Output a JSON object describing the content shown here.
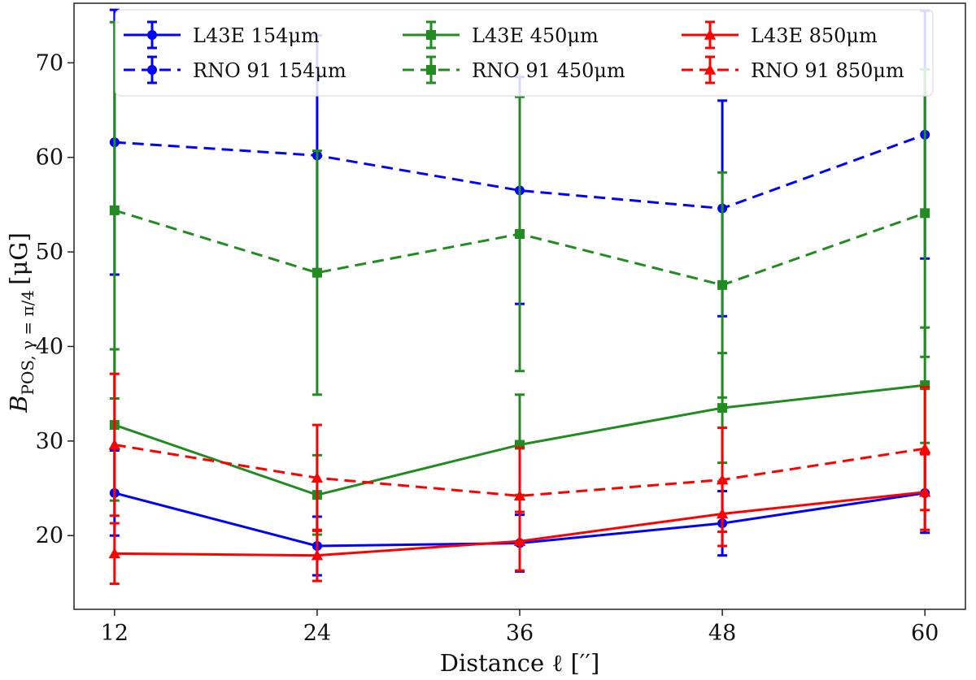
{
  "chart_data": {
    "type": "line",
    "xlabel": "Distance ℓ [′′]",
    "ylabel": {
      "main": "B",
      "sub": "POS, γ = π/4",
      "unit": "[μG]"
    },
    "x": [
      12,
      24,
      36,
      48,
      60
    ],
    "xlim": [
      9.6,
      62.4
    ],
    "ylim": [
      12.2,
      76.3
    ],
    "yticks": [
      20,
      30,
      40,
      50,
      60,
      70
    ],
    "xticks": [
      12,
      24,
      36,
      48,
      60
    ],
    "grid": false,
    "legend_placement": "top",
    "series": [
      {
        "name": "L43E 154μm",
        "color": "#0000ff",
        "dash": false,
        "marker": "circle",
        "values": [
          24.5,
          18.9,
          19.2,
          21.3,
          24.5
        ],
        "err": [
          4.5,
          3.1,
          3.0,
          3.4,
          4.2
        ]
      },
      {
        "name": "RNO 91 154μm",
        "color": "#0000ff",
        "dash": true,
        "marker": "circle",
        "values": [
          61.6,
          60.2,
          56.5,
          54.6,
          62.4
        ],
        "err": [
          14.0,
          12.7,
          12.0,
          11.4,
          13.1
        ]
      },
      {
        "name": "L43E 450μm",
        "color": "#228b22",
        "dash": false,
        "marker": "square",
        "values": [
          31.7,
          24.3,
          29.6,
          33.5,
          35.9
        ],
        "err": [
          8.0,
          4.2,
          5.3,
          5.8,
          6.1
        ]
      },
      {
        "name": "RNO 91 450μm",
        "color": "#228b22",
        "dash": true,
        "marker": "square",
        "values": [
          54.4,
          47.8,
          51.9,
          46.5,
          54.1
        ],
        "err": [
          19.9,
          12.9,
          14.5,
          11.9,
          15.2
        ]
      },
      {
        "name": "L43E 850μm",
        "color": "#ff0000",
        "dash": false,
        "marker": "triangle",
        "values": [
          18.1,
          17.9,
          19.4,
          22.3,
          24.6
        ],
        "err": [
          3.2,
          2.7,
          3.1,
          3.4,
          4.0
        ]
      },
      {
        "name": "RNO 91 850μm",
        "color": "#ff0000",
        "dash": true,
        "marker": "triangle",
        "values": [
          29.6,
          26.1,
          24.2,
          25.9,
          29.2
        ],
        "err": [
          7.5,
          5.6,
          5.1,
          5.5,
          6.5
        ]
      }
    ],
    "legend_order": [
      0,
      2,
      4,
      1,
      3,
      5
    ]
  }
}
